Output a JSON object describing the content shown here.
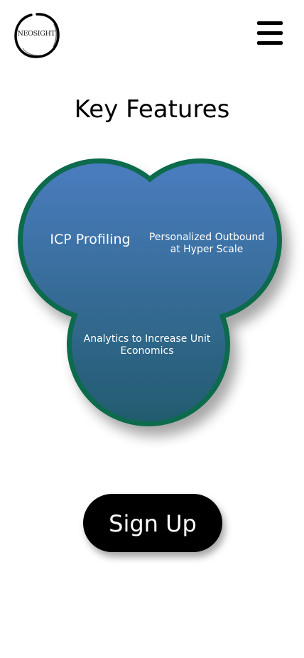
{
  "header": {
    "logo_text": "NEOSIGHT",
    "menu_icon": "hamburger-menu-icon"
  },
  "page_title": "Key Features",
  "features": [
    {
      "label": "ICP Profiling"
    },
    {
      "label": "Personalized Outbound at Hyper Scale"
    },
    {
      "label": "Analytics to Increase Unit Economics"
    }
  ],
  "signup_label": "Sign Up",
  "colors": {
    "circle_fill_top": "#4a7dc0",
    "circle_fill_bottom": "#225b6e",
    "circle_border": "#0e6b4e",
    "button_bg": "#000000",
    "text_light": "#ffffff"
  }
}
